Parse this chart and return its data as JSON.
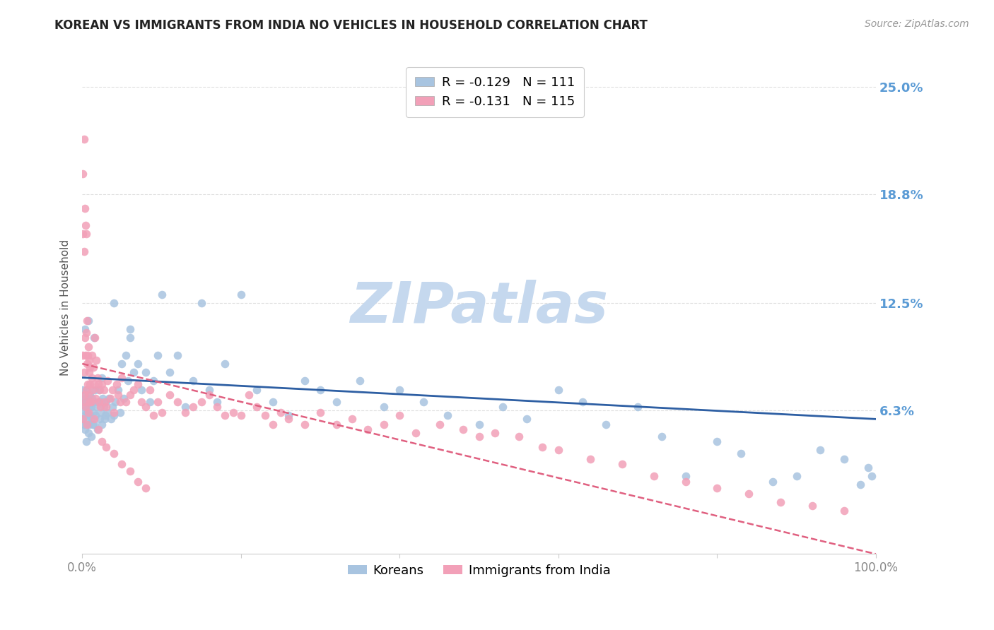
{
  "title": "KOREAN VS IMMIGRANTS FROM INDIA NO VEHICLES IN HOUSEHOLD CORRELATION CHART",
  "source": "Source: ZipAtlas.com",
  "ylabel": "No Vehicles in Household",
  "ytick_labels": [
    "6.3%",
    "12.5%",
    "18.8%",
    "25.0%"
  ],
  "ytick_values": [
    0.063,
    0.125,
    0.188,
    0.25
  ],
  "legend_korean": "R = -0.129   N = 111",
  "legend_india": "R = -0.131   N = 115",
  "legend_label_korean": "Koreans",
  "legend_label_india": "Immigrants from India",
  "korean_color": "#a8c4e0",
  "india_color": "#f2a0b8",
  "korean_line_color": "#2e5fa3",
  "india_line_color": "#e06080",
  "watermark": "ZIPatlas",
  "watermark_color": "#c5d8ee",
  "background_color": "#ffffff",
  "grid_color": "#e0e0e0",
  "title_color": "#222222",
  "ytick_color": "#5b9bd5",
  "xtick_color": "#888888",
  "xmin": 0.0,
  "xmax": 1.0,
  "ymin": -0.02,
  "ymax": 0.265,
  "korean_line_x0": 0.0,
  "korean_line_y0": 0.082,
  "korean_line_x1": 1.0,
  "korean_line_y1": 0.058,
  "india_line_x0": 0.0,
  "india_line_y0": 0.09,
  "india_line_x1": 1.0,
  "india_line_y1": -0.02,
  "korean_scatter_x": [
    0.001,
    0.001,
    0.001,
    0.002,
    0.002,
    0.002,
    0.003,
    0.003,
    0.004,
    0.004,
    0.005,
    0.005,
    0.005,
    0.006,
    0.006,
    0.007,
    0.007,
    0.008,
    0.008,
    0.009,
    0.009,
    0.01,
    0.01,
    0.011,
    0.011,
    0.012,
    0.012,
    0.013,
    0.014,
    0.015,
    0.015,
    0.016,
    0.017,
    0.018,
    0.019,
    0.02,
    0.021,
    0.022,
    0.023,
    0.024,
    0.025,
    0.026,
    0.027,
    0.028,
    0.029,
    0.03,
    0.032,
    0.034,
    0.036,
    0.038,
    0.04,
    0.042,
    0.045,
    0.048,
    0.05,
    0.052,
    0.055,
    0.058,
    0.06,
    0.065,
    0.07,
    0.075,
    0.08,
    0.085,
    0.09,
    0.095,
    0.1,
    0.11,
    0.12,
    0.13,
    0.14,
    0.15,
    0.16,
    0.17,
    0.18,
    0.2,
    0.22,
    0.24,
    0.26,
    0.28,
    0.3,
    0.32,
    0.35,
    0.38,
    0.4,
    0.43,
    0.46,
    0.5,
    0.53,
    0.56,
    0.6,
    0.63,
    0.66,
    0.7,
    0.73,
    0.76,
    0.8,
    0.83,
    0.87,
    0.9,
    0.93,
    0.96,
    0.98,
    0.99,
    0.995,
    0.003,
    0.008,
    0.015,
    0.025,
    0.04,
    0.06
  ],
  "korean_scatter_y": [
    0.075,
    0.068,
    0.058,
    0.072,
    0.063,
    0.055,
    0.07,
    0.052,
    0.065,
    0.06,
    0.068,
    0.055,
    0.045,
    0.062,
    0.075,
    0.058,
    0.07,
    0.05,
    0.065,
    0.055,
    0.068,
    0.06,
    0.072,
    0.048,
    0.065,
    0.058,
    0.07,
    0.055,
    0.062,
    0.068,
    0.055,
    0.075,
    0.06,
    0.065,
    0.052,
    0.068,
    0.075,
    0.058,
    0.062,
    0.068,
    0.055,
    0.07,
    0.065,
    0.058,
    0.06,
    0.068,
    0.062,
    0.07,
    0.058,
    0.065,
    0.06,
    0.068,
    0.075,
    0.062,
    0.09,
    0.07,
    0.095,
    0.08,
    0.105,
    0.085,
    0.09,
    0.075,
    0.085,
    0.068,
    0.08,
    0.095,
    0.13,
    0.085,
    0.095,
    0.065,
    0.08,
    0.125,
    0.075,
    0.068,
    0.09,
    0.13,
    0.075,
    0.068,
    0.06,
    0.08,
    0.075,
    0.068,
    0.08,
    0.065,
    0.075,
    0.068,
    0.06,
    0.055,
    0.065,
    0.058,
    0.075,
    0.068,
    0.055,
    0.065,
    0.048,
    0.025,
    0.045,
    0.038,
    0.022,
    0.025,
    0.04,
    0.035,
    0.02,
    0.03,
    0.025,
    0.11,
    0.115,
    0.105,
    0.082,
    0.125,
    0.11
  ],
  "india_scatter_x": [
    0.001,
    0.001,
    0.001,
    0.002,
    0.002,
    0.002,
    0.003,
    0.003,
    0.003,
    0.004,
    0.004,
    0.005,
    0.005,
    0.005,
    0.006,
    0.006,
    0.007,
    0.007,
    0.008,
    0.008,
    0.009,
    0.009,
    0.01,
    0.01,
    0.011,
    0.012,
    0.012,
    0.013,
    0.014,
    0.015,
    0.016,
    0.017,
    0.018,
    0.019,
    0.02,
    0.021,
    0.022,
    0.023,
    0.025,
    0.027,
    0.028,
    0.03,
    0.032,
    0.035,
    0.038,
    0.04,
    0.043,
    0.045,
    0.048,
    0.05,
    0.055,
    0.06,
    0.065,
    0.07,
    0.075,
    0.08,
    0.085,
    0.09,
    0.095,
    0.1,
    0.11,
    0.12,
    0.13,
    0.14,
    0.15,
    0.16,
    0.17,
    0.18,
    0.19,
    0.2,
    0.21,
    0.22,
    0.23,
    0.24,
    0.25,
    0.26,
    0.28,
    0.3,
    0.32,
    0.34,
    0.36,
    0.38,
    0.4,
    0.42,
    0.45,
    0.48,
    0.5,
    0.52,
    0.55,
    0.58,
    0.6,
    0.64,
    0.68,
    0.72,
    0.76,
    0.8,
    0.84,
    0.88,
    0.92,
    0.96,
    0.001,
    0.002,
    0.004,
    0.006,
    0.008,
    0.01,
    0.015,
    0.02,
    0.025,
    0.03,
    0.04,
    0.05,
    0.06,
    0.07,
    0.08
  ],
  "india_scatter_y": [
    0.2,
    0.165,
    0.095,
    0.22,
    0.155,
    0.085,
    0.18,
    0.105,
    0.068,
    0.17,
    0.095,
    0.165,
    0.108,
    0.075,
    0.09,
    0.115,
    0.078,
    0.095,
    0.1,
    0.072,
    0.085,
    0.092,
    0.078,
    0.088,
    0.068,
    0.082,
    0.095,
    0.075,
    0.088,
    0.078,
    0.105,
    0.07,
    0.092,
    0.082,
    0.078,
    0.068,
    0.075,
    0.065,
    0.078,
    0.075,
    0.068,
    0.065,
    0.08,
    0.07,
    0.075,
    0.062,
    0.078,
    0.072,
    0.068,
    0.082,
    0.068,
    0.072,
    0.075,
    0.078,
    0.068,
    0.065,
    0.075,
    0.06,
    0.068,
    0.062,
    0.072,
    0.068,
    0.062,
    0.065,
    0.068,
    0.072,
    0.065,
    0.06,
    0.062,
    0.06,
    0.072,
    0.065,
    0.06,
    0.055,
    0.062,
    0.058,
    0.055,
    0.062,
    0.055,
    0.058,
    0.052,
    0.055,
    0.06,
    0.05,
    0.055,
    0.052,
    0.048,
    0.05,
    0.048,
    0.042,
    0.04,
    0.035,
    0.032,
    0.025,
    0.022,
    0.018,
    0.015,
    0.01,
    0.008,
    0.005,
    0.058,
    0.072,
    0.065,
    0.055,
    0.062,
    0.068,
    0.058,
    0.052,
    0.045,
    0.042,
    0.038,
    0.032,
    0.028,
    0.022,
    0.018
  ]
}
